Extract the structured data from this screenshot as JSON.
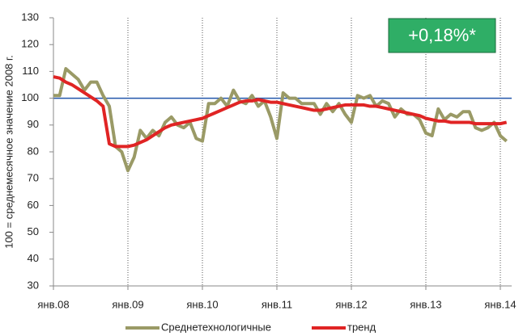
{
  "chart_data": {
    "type": "line",
    "y_label": "100 = среднемесячное значение 2008 г.",
    "annotation": "+0,18%*",
    "annotation_color": "#2fae66",
    "categories": [
      "янв.08",
      null,
      null,
      null,
      null,
      null,
      null,
      null,
      null,
      null,
      null,
      null,
      "янв.09",
      null,
      null,
      null,
      null,
      null,
      null,
      null,
      null,
      null,
      null,
      null,
      "янв.10",
      null,
      null,
      null,
      null,
      null,
      null,
      null,
      null,
      null,
      null,
      null,
      "янв.11",
      null,
      null,
      null,
      null,
      null,
      null,
      null,
      null,
      null,
      null,
      null,
      "янв.12",
      null,
      null,
      null,
      null,
      null,
      null,
      null,
      null,
      null,
      null,
      null,
      "янв.13",
      null,
      null,
      null,
      null,
      null,
      null,
      null,
      null,
      null,
      null,
      null,
      "янв.14",
      null
    ],
    "series": [
      {
        "name": "Среднетехнологичные",
        "color": "#9a9a66",
        "width": 4,
        "values": [
          101,
          101,
          111,
          109,
          107,
          103,
          106,
          106,
          101,
          97,
          82,
          80,
          73,
          78,
          88,
          85,
          88,
          86,
          91,
          93,
          90,
          89,
          91,
          85,
          84,
          98,
          98,
          100,
          97,
          103,
          99,
          98,
          101,
          97,
          99,
          93,
          85,
          102,
          100,
          100,
          98,
          98,
          98,
          94,
          98,
          95,
          98,
          94,
          91,
          101,
          100,
          101,
          97,
          99,
          98,
          93,
          96,
          94,
          94,
          92,
          87,
          86,
          96,
          92,
          94,
          93,
          95,
          95,
          89,
          88,
          89,
          91,
          86,
          84
        ]
      },
      {
        "name": "тренд",
        "color": "#e02424",
        "width": 4,
        "values": [
          108,
          107.5,
          106,
          105,
          103.5,
          102,
          100.5,
          99,
          97,
          83,
          82,
          82,
          82,
          82.5,
          83.5,
          84.5,
          86,
          87.5,
          89,
          90,
          90.5,
          91,
          91.5,
          92,
          92.5,
          93.5,
          94.5,
          95.5,
          96.5,
          97.5,
          98.5,
          99,
          99,
          99.5,
          99,
          98.5,
          98.5,
          98,
          97.5,
          97,
          96.5,
          96,
          95.5,
          95.5,
          96,
          96.5,
          97,
          97.5,
          97.5,
          97.5,
          97.5,
          97,
          97,
          96.5,
          96,
          95.5,
          95,
          94.5,
          94,
          93.5,
          92.5,
          92,
          91.5,
          91.5,
          91,
          91,
          91,
          91,
          90.5,
          90.5,
          90.5,
          90.5,
          90.5,
          91
        ]
      }
    ],
    "ylim": [
      30,
      130
    ],
    "yticks": [
      30,
      40,
      50,
      60,
      70,
      80,
      90,
      100,
      110,
      120,
      130
    ],
    "reference_line": 100,
    "reference_color": "#2255aa",
    "grid": "x",
    "legend": "bottom"
  }
}
